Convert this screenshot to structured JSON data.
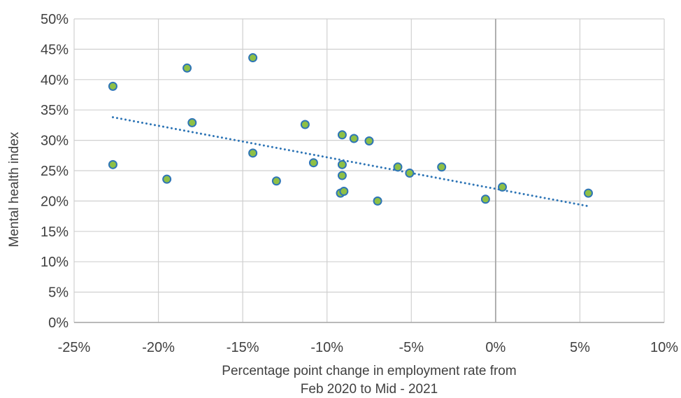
{
  "chart_data": {
    "type": "scatter",
    "xlabel": [
      "Percentage point change in employment rate from",
      "Feb 2020 to Mid - 2021"
    ],
    "ylabel": "Mental health index",
    "xlim": [
      -25,
      10
    ],
    "ylim": [
      0,
      50
    ],
    "x_ticks": [
      "-25%",
      "-20%",
      "-15%",
      "-10%",
      "-5%",
      "0%",
      "5%",
      "10%"
    ],
    "y_ticks": [
      "0%",
      "5%",
      "10%",
      "15%",
      "20%",
      "25%",
      "30%",
      "35%",
      "40%",
      "45%",
      "50%"
    ],
    "grid": true,
    "points": [
      {
        "x": -22.7,
        "y": 38.9
      },
      {
        "x": -22.7,
        "y": 26.0
      },
      {
        "x": -19.5,
        "y": 23.6
      },
      {
        "x": -18.3,
        "y": 41.9
      },
      {
        "x": -18.0,
        "y": 32.9
      },
      {
        "x": -14.4,
        "y": 43.6
      },
      {
        "x": -14.4,
        "y": 27.9
      },
      {
        "x": -13.0,
        "y": 23.3
      },
      {
        "x": -11.3,
        "y": 32.6
      },
      {
        "x": -10.8,
        "y": 26.3
      },
      {
        "x": -9.2,
        "y": 21.3
      },
      {
        "x": -9.1,
        "y": 30.9
      },
      {
        "x": -9.1,
        "y": 26.0
      },
      {
        "x": -9.1,
        "y": 24.2
      },
      {
        "x": -9.0,
        "y": 21.6
      },
      {
        "x": -8.4,
        "y": 30.3
      },
      {
        "x": -7.5,
        "y": 29.9
      },
      {
        "x": -7.0,
        "y": 20.0
      },
      {
        "x": -5.8,
        "y": 25.6
      },
      {
        "x": -5.1,
        "y": 24.6
      },
      {
        "x": -3.2,
        "y": 25.6
      },
      {
        "x": -0.6,
        "y": 20.3
      },
      {
        "x": 0.4,
        "y": 22.3
      },
      {
        "x": 5.5,
        "y": 21.3
      }
    ],
    "trendline": {
      "style": "dotted",
      "x_start": -22.7,
      "y_start": 33.8,
      "x_end": 5.6,
      "y_end": 19.1
    },
    "colors": {
      "marker_fill": "#8ec046",
      "marker_edge": "#2e75b6",
      "trend": "#2e75b6",
      "grid": "#d0d0d0",
      "zero_line": "#a6a6a6"
    }
  }
}
